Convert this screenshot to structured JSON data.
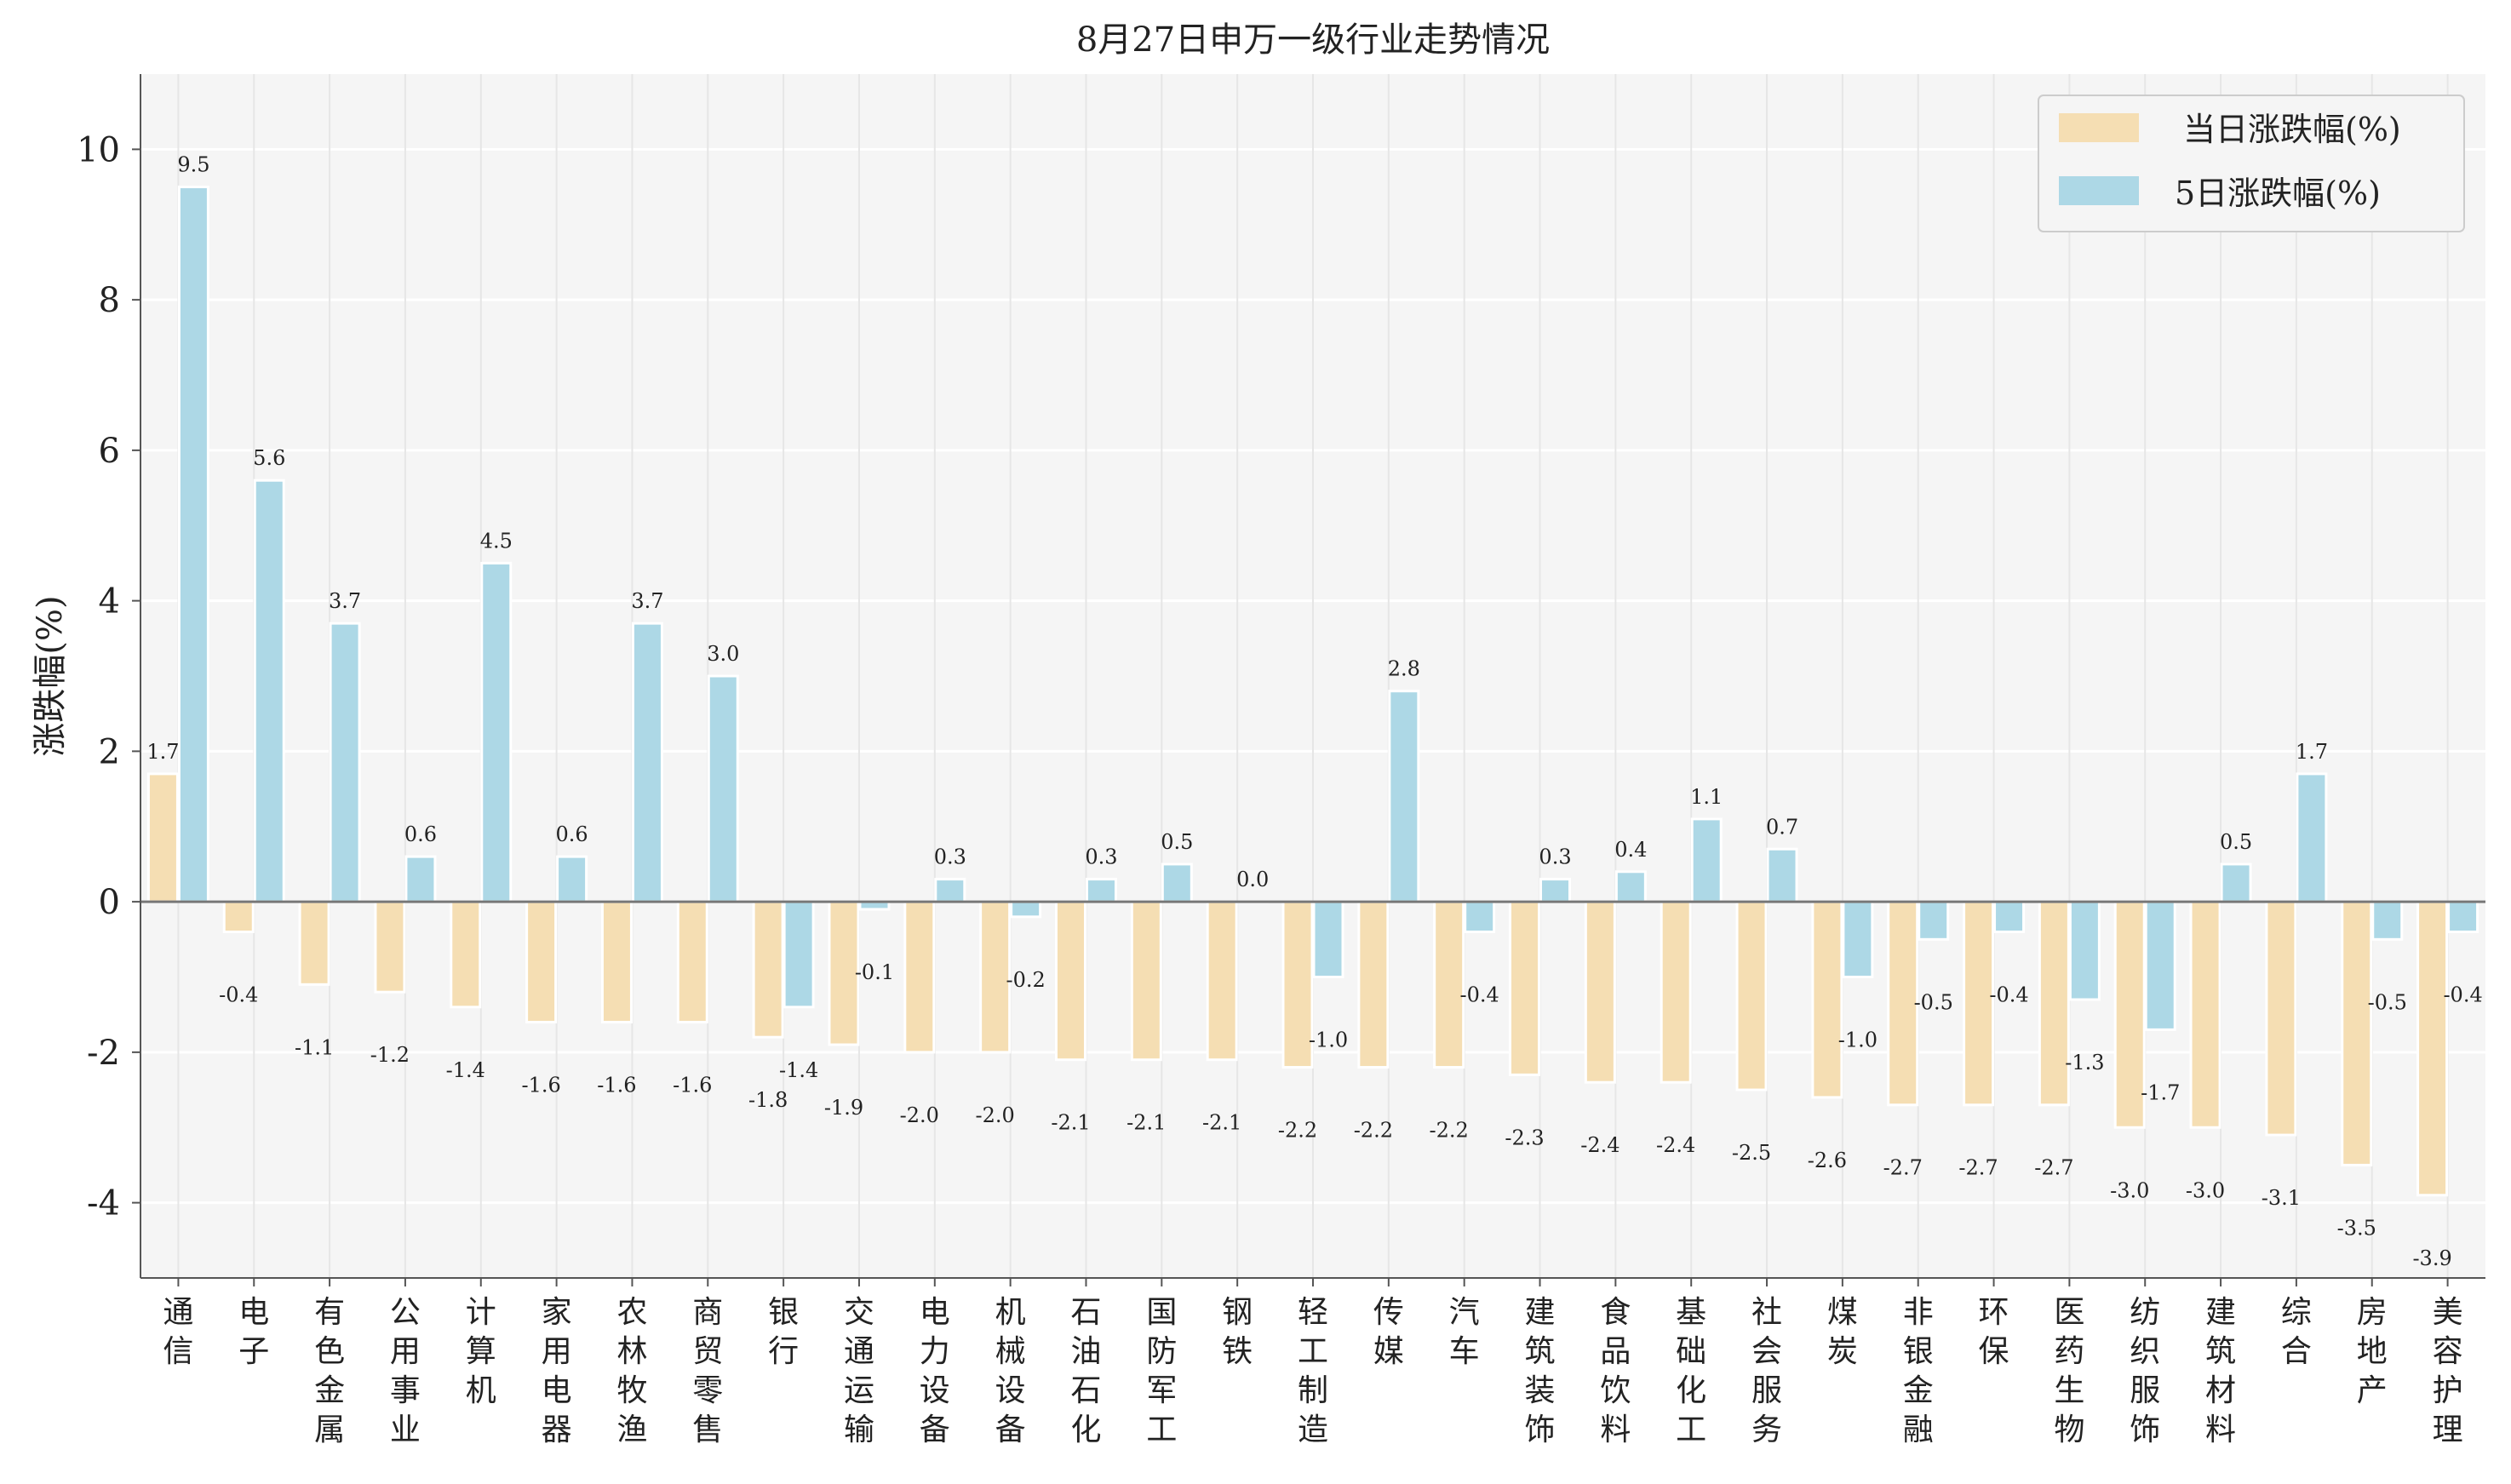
{
  "chart_data": {
    "type": "bar",
    "title": "8月27日申万一级行业走势情况",
    "xlabel": "",
    "ylabel": "涨跌幅(%)",
    "ylim": [
      -5,
      11
    ],
    "yticks": [
      -4,
      -2,
      0,
      2,
      4,
      6,
      8,
      10
    ],
    "ytick_labels": [
      "-4",
      "-2",
      "0",
      "2",
      "4",
      "6",
      "8",
      "10"
    ],
    "grid": true,
    "legend_position": "top-right",
    "categories": [
      "通信",
      "电子",
      "有色金属",
      "公用事业",
      "计算机",
      "家用电器",
      "农林牧渔",
      "商贸零售",
      "银行",
      "交通运输",
      "电力设备",
      "机械设备",
      "石油石化",
      "国防军工",
      "钢铁",
      "轻工制造",
      "传媒",
      "汽车",
      "建筑装饰",
      "食品饮料",
      "基础化工",
      "社会服务",
      "煤炭",
      "非银金融",
      "环保",
      "医药生物",
      "纺织服饰",
      "建筑材料",
      "综合",
      "房地产",
      "美容护理"
    ],
    "series": [
      {
        "name": "当日涨跌幅(%)",
        "color": "#f5deb3",
        "values": [
          1.7,
          -0.4,
          -1.1,
          -1.2,
          -1.4,
          -1.6,
          -1.6,
          -1.6,
          -1.8,
          -1.9,
          -2.0,
          -2.0,
          -2.1,
          -2.1,
          -2.1,
          -2.2,
          -2.2,
          -2.2,
          -2.3,
          -2.4,
          -2.4,
          -2.5,
          -2.6,
          -2.7,
          -2.7,
          -2.7,
          -3.0,
          -3.0,
          -3.1,
          -3.5,
          -3.9
        ]
      },
      {
        "name": "5日涨跌幅(%)",
        "color": "#add8e6",
        "values": [
          9.5,
          5.6,
          3.7,
          0.6,
          4.5,
          0.6,
          3.7,
          3.0,
          -1.4,
          -0.1,
          0.3,
          -0.2,
          0.3,
          0.5,
          0.0,
          -1.0,
          2.8,
          -0.4,
          0.3,
          0.4,
          1.1,
          0.7,
          -1.0,
          -0.5,
          -0.4,
          -1.3,
          -1.7,
          0.5,
          1.7,
          -0.5,
          -0.4
        ]
      }
    ]
  }
}
